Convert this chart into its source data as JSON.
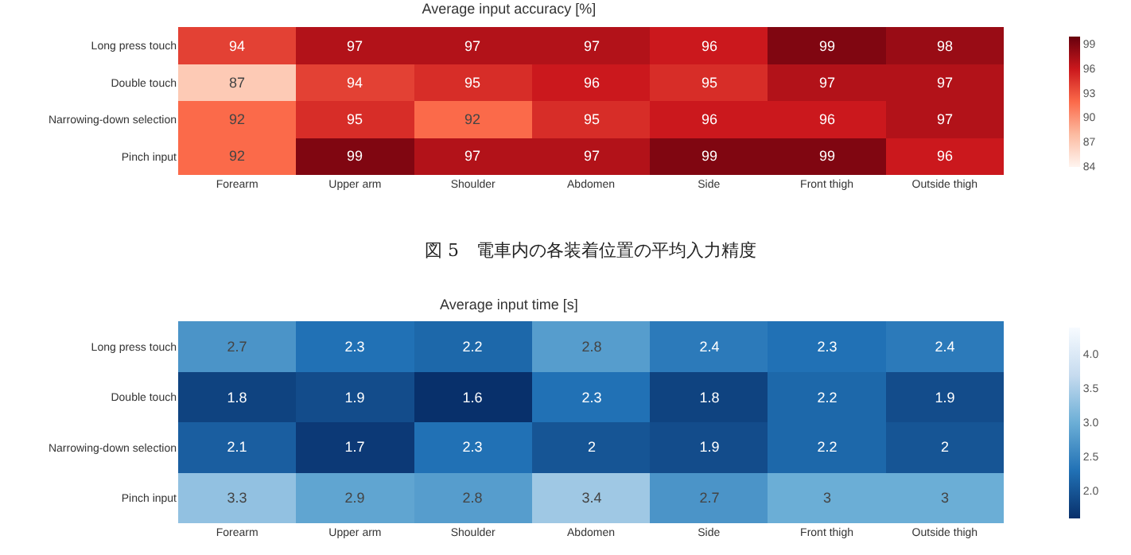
{
  "chart_data": [
    {
      "type": "heatmap",
      "title": "Average input accuracy [%]",
      "categories": [
        "Forearm",
        "Upper arm",
        "Shoulder",
        "Abdomen",
        "Side",
        "Front thigh",
        "Outside thigh"
      ],
      "y_categories": [
        "Long press touch",
        "Double touch",
        "Narrowing-down selection",
        "Pinch input"
      ],
      "cells": [
        [
          94,
          97,
          97,
          97,
          96,
          99,
          98
        ],
        [
          87,
          94,
          95,
          96,
          95,
          97,
          97
        ],
        [
          92,
          95,
          92,
          95,
          96,
          96,
          97
        ],
        [
          92,
          99,
          97,
          97,
          99,
          99,
          96
        ]
      ],
      "data_labels": true,
      "clim": [
        84,
        100
      ],
      "cticks": [
        84,
        87,
        90,
        93,
        96,
        99
      ],
      "colors": [
        "#fff5f0",
        "#fcbba1",
        "#fb6a4a",
        "#cb181d",
        "#67000d"
      ],
      "annotations": [
        "図 5　電車内の各装着位置の平均入力精度"
      ]
    },
    {
      "type": "heatmap",
      "title": "Average input time [s]",
      "categories": [
        "Forearm",
        "Upper arm",
        "Shoulder",
        "Abdomen",
        "Side",
        "Front thigh",
        "Outside thigh"
      ],
      "y_categories": [
        "Long press touch",
        "Double touch",
        "Narrowing-down selection",
        "Pinch input"
      ],
      "cells": [
        [
          2.7,
          2.3,
          2.2,
          2.8,
          2.4,
          2.3,
          2.4
        ],
        [
          1.8,
          1.9,
          1.6,
          2.3,
          1.8,
          2.2,
          1.9
        ],
        [
          2.1,
          1.7,
          2.3,
          2,
          1.9,
          2.2,
          2
        ],
        [
          3.3,
          2.9,
          2.8,
          3.4,
          2.7,
          3,
          3
        ]
      ],
      "data_labels": true,
      "clim": [
        1.6,
        4.4
      ],
      "cticks": [
        {
          "value": 2,
          "label": "2.0"
        },
        {
          "value": 2.5,
          "label": "2.5"
        },
        {
          "value": 3,
          "label": "3.0"
        },
        {
          "value": 3.5,
          "label": "3.5"
        },
        {
          "value": 4,
          "label": "4.0"
        }
      ],
      "colors": [
        "#08306b",
        "#2171b5",
        "#6baed6",
        "#c6dbef",
        "#f7fbff"
      ]
    }
  ]
}
